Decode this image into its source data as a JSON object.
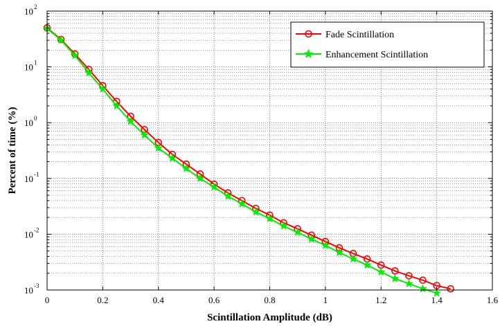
{
  "chart_data": {
    "type": "line",
    "title": "",
    "xlabel": "Scintillation Amplitude (dB)",
    "ylabel": "Percent of time (%)",
    "xlim": [
      0,
      1.6
    ],
    "ylim": [
      0.001,
      100
    ],
    "yscale": "log",
    "grid": true,
    "legend_position": "top-right",
    "x_ticks": [
      "0",
      "0.2",
      "0.4",
      "0.6",
      "0.8",
      "1",
      "1.2",
      "1.4",
      "1.6"
    ],
    "y_ticks": [
      {
        "base": "10",
        "exp": "-3"
      },
      {
        "base": "10",
        "exp": "-2"
      },
      {
        "base": "10",
        "exp": "-1"
      },
      {
        "base": "10",
        "exp": "0"
      },
      {
        "base": "10",
        "exp": "1"
      },
      {
        "base": "10",
        "exp": "2"
      }
    ],
    "series": [
      {
        "name": "Fade Scintillation",
        "color": "#ff0000",
        "marker": "circle",
        "x": [
          0,
          0.05,
          0.1,
          0.15,
          0.2,
          0.25,
          0.3,
          0.35,
          0.4,
          0.45,
          0.5,
          0.55,
          0.6,
          0.65,
          0.7,
          0.75,
          0.8,
          0.85,
          0.9,
          0.95,
          1.0,
          1.05,
          1.1,
          1.15,
          1.2,
          1.25,
          1.3,
          1.35,
          1.4,
          1.45
        ],
        "y": [
          50,
          31,
          17,
          9.0,
          4.6,
          2.4,
          1.3,
          0.75,
          0.44,
          0.27,
          0.18,
          0.12,
          0.079,
          0.055,
          0.04,
          0.029,
          0.022,
          0.016,
          0.0125,
          0.0096,
          0.0074,
          0.0057,
          0.0045,
          0.0036,
          0.0028,
          0.0022,
          0.0018,
          0.0015,
          0.0012,
          0.00105
        ]
      },
      {
        "name": "Enhancement Scintillation",
        "color": "#00ee00",
        "marker": "star",
        "x": [
          0,
          0.05,
          0.1,
          0.15,
          0.2,
          0.25,
          0.3,
          0.35,
          0.4,
          0.45,
          0.5,
          0.55,
          0.6,
          0.65,
          0.7,
          0.75,
          0.8,
          0.85,
          0.9,
          0.95,
          1.0,
          1.05,
          1.1,
          1.15,
          1.2,
          1.25,
          1.3,
          1.35,
          1.4
        ],
        "y": [
          49,
          30,
          16,
          7.8,
          4.0,
          2.0,
          1.05,
          0.6,
          0.35,
          0.23,
          0.15,
          0.1,
          0.07,
          0.048,
          0.035,
          0.025,
          0.019,
          0.014,
          0.0108,
          0.0082,
          0.0063,
          0.0047,
          0.0036,
          0.0028,
          0.0021,
          0.0016,
          0.0013,
          0.00105,
          0.00088
        ]
      }
    ]
  }
}
